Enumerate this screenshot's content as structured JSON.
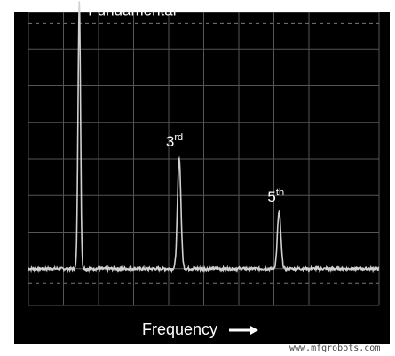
{
  "chart_data": {
    "type": "line",
    "xlabel": "Frequency",
    "title": "",
    "grid": true,
    "trace_color": "#d0d0d0",
    "grid_color": "#555555",
    "peaks": [
      {
        "label": "Fundamental",
        "base": "",
        "suffix": "",
        "frequency_division": 1.45,
        "amplitude_division": 7.3
      },
      {
        "label": "3rd",
        "base": "3",
        "suffix": "rd",
        "frequency_division": 4.3,
        "amplitude_division": 3.05
      },
      {
        "label": "5th",
        "base": "5",
        "suffix": "th",
        "frequency_division": 7.15,
        "amplitude_division": 1.55
      }
    ],
    "noise_floor_division": 0.0,
    "x_range_divisions": [
      0,
      10
    ],
    "y_range_divisions": [
      -1,
      7
    ]
  },
  "watermark": "www.mfgrobots.com"
}
